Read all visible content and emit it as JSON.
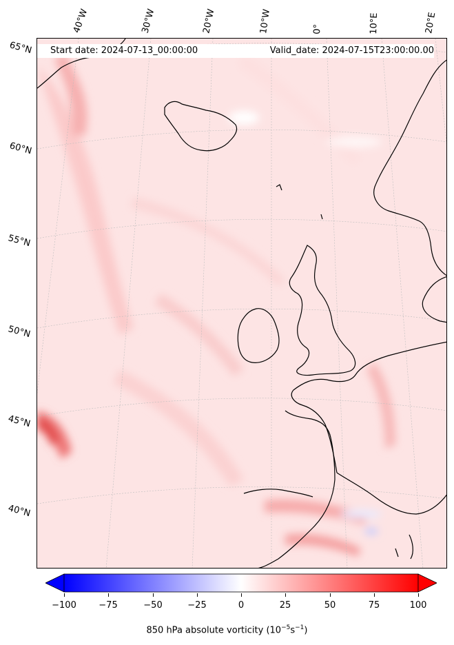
{
  "header": {
    "start_date": "Start date: 2024-07-13_00:00:00",
    "valid_date": "Valid_date: 2024-07-15T23:00:00.00"
  },
  "longitude_labels": [
    "40°W",
    "30°W",
    "20°W",
    "10°W",
    "0°",
    "10°E",
    "20°E"
  ],
  "latitude_labels": [
    "65°N",
    "60°N",
    "55°N",
    "50°N",
    "45°N",
    "40°N"
  ],
  "colorbar": {
    "label": "850 hPa absolute vorticity (10",
    "label_exp1": "−5",
    "label_mid": "s",
    "label_exp2": "−1",
    "label_end": ")",
    "ticks": [
      "−100",
      "−75",
      "−50",
      "−25",
      "0",
      "25",
      "50",
      "75",
      "100"
    ],
    "min": -100,
    "max": 100,
    "low_color": "#0000ff",
    "mid_color": "#ffffff",
    "high_color": "#ff0000"
  },
  "map": {
    "background_color": "#fde8e8",
    "field_colors": [
      "#fff5f5",
      "#fde2e2",
      "#fbd0d0",
      "#f7b4b4",
      "#f08c8c",
      "#e85a5a"
    ],
    "coastline_color": "#000000"
  }
}
